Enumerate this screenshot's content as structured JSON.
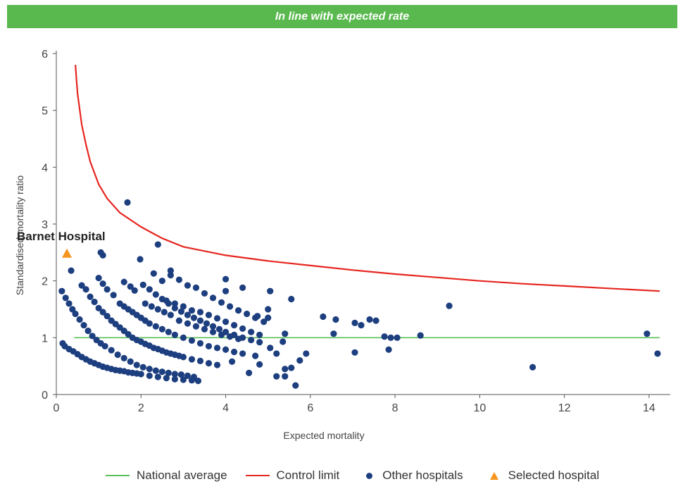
{
  "banner": {
    "text": "In line with expected rate",
    "color": "#59b94e"
  },
  "chart_data": {
    "type": "scatter",
    "xlabel": "Expected mortality",
    "ylabel": "Standardised mortality ratio",
    "xlim": [
      0,
      14.5
    ],
    "ylim": [
      0,
      6
    ],
    "xticks": [
      0,
      2,
      4,
      6,
      8,
      10,
      12,
      14
    ],
    "yticks": [
      0,
      1,
      2,
      3,
      4,
      5,
      6
    ],
    "grid": false,
    "legend_position": "bottom",
    "annotation": {
      "text": "Barnet Hospital",
      "x": 0.25,
      "y": 2.47
    },
    "national_average": {
      "name": "National average",
      "color": "#5cc05a",
      "x": [
        0.42,
        14.25
      ],
      "y": [
        1,
        1
      ]
    },
    "control_limit": {
      "name": "Control limit",
      "color": "#e62620",
      "x": [
        0.45,
        0.5,
        0.6,
        0.7,
        0.8,
        1.0,
        1.2,
        1.5,
        2,
        2.5,
        3,
        4,
        5,
        6,
        7,
        8,
        9,
        10,
        11,
        12,
        13,
        14.25
      ],
      "y": [
        5.8,
        5.3,
        4.75,
        4.4,
        4.1,
        3.7,
        3.45,
        3.2,
        2.95,
        2.75,
        2.6,
        2.45,
        2.35,
        2.27,
        2.19,
        2.12,
        2.06,
        2.0,
        1.95,
        1.91,
        1.87,
        1.82
      ]
    },
    "other_hospitals": {
      "name": "Other hospitals",
      "color": "#1d3f7f",
      "points": [
        [
          0.13,
          1.82
        ],
        [
          0.22,
          1.7
        ],
        [
          0.3,
          1.6
        ],
        [
          0.38,
          1.5
        ],
        [
          0.45,
          1.42
        ],
        [
          0.55,
          1.32
        ],
        [
          0.65,
          1.22
        ],
        [
          0.75,
          1.12
        ],
        [
          0.85,
          1.03
        ],
        [
          0.95,
          0.96
        ],
        [
          1.05,
          0.9
        ],
        [
          1.15,
          0.85
        ],
        [
          1.3,
          0.78
        ],
        [
          1.45,
          0.7
        ],
        [
          1.6,
          0.64
        ],
        [
          1.75,
          0.58
        ],
        [
          1.9,
          0.52
        ],
        [
          2.05,
          0.48
        ],
        [
          2.2,
          0.45
        ],
        [
          2.35,
          0.42
        ],
        [
          2.5,
          0.4
        ],
        [
          2.65,
          0.38
        ],
        [
          2.8,
          0.36
        ],
        [
          2.95,
          0.35
        ],
        [
          3.1,
          0.33
        ],
        [
          3.25,
          0.31
        ],
        [
          0.15,
          0.9
        ],
        [
          0.2,
          0.85
        ],
        [
          0.3,
          0.8
        ],
        [
          0.4,
          0.76
        ],
        [
          0.5,
          0.71
        ],
        [
          0.6,
          0.66
        ],
        [
          0.7,
          0.62
        ],
        [
          0.8,
          0.58
        ],
        [
          0.9,
          0.55
        ],
        [
          1.0,
          0.52
        ],
        [
          1.1,
          0.49
        ],
        [
          1.2,
          0.47
        ],
        [
          1.3,
          0.45
        ],
        [
          1.4,
          0.43
        ],
        [
          1.5,
          0.42
        ],
        [
          1.6,
          0.41
        ],
        [
          1.7,
          0.39
        ],
        [
          1.8,
          0.38
        ],
        [
          1.9,
          0.37
        ],
        [
          2.0,
          0.36
        ],
        [
          2.2,
          0.33
        ],
        [
          2.4,
          0.31
        ],
        [
          2.6,
          0.29
        ],
        [
          2.8,
          0.27
        ],
        [
          3.0,
          0.26
        ],
        [
          3.2,
          0.25
        ],
        [
          3.35,
          0.24
        ],
        [
          0.35,
          2.18
        ],
        [
          0.6,
          1.92
        ],
        [
          0.7,
          1.85
        ],
        [
          0.8,
          1.72
        ],
        [
          0.9,
          1.63
        ],
        [
          1.0,
          1.52
        ],
        [
          1.1,
          1.45
        ],
        [
          1.2,
          1.38
        ],
        [
          1.3,
          1.3
        ],
        [
          1.4,
          1.24
        ],
        [
          1.5,
          1.18
        ],
        [
          1.6,
          1.12
        ],
        [
          1.7,
          1.06
        ],
        [
          1.8,
          1.0
        ],
        [
          1.9,
          0.96
        ],
        [
          2.0,
          0.93
        ],
        [
          2.1,
          0.89
        ],
        [
          2.2,
          0.86
        ],
        [
          2.3,
          0.82
        ],
        [
          2.4,
          0.8
        ],
        [
          2.5,
          0.77
        ],
        [
          2.6,
          0.74
        ],
        [
          2.7,
          0.72
        ],
        [
          2.8,
          0.7
        ],
        [
          2.9,
          0.68
        ],
        [
          3.0,
          0.66
        ],
        [
          3.2,
          0.62
        ],
        [
          3.4,
          0.59
        ],
        [
          3.6,
          0.55
        ],
        [
          3.8,
          0.52
        ],
        [
          1.0,
          2.05
        ],
        [
          1.1,
          1.95
        ],
        [
          1.2,
          1.85
        ],
        [
          1.35,
          1.75
        ],
        [
          1.5,
          1.6
        ],
        [
          1.6,
          1.55
        ],
        [
          1.7,
          1.5
        ],
        [
          1.8,
          1.45
        ],
        [
          1.9,
          1.4
        ],
        [
          2.0,
          1.35
        ],
        [
          2.1,
          1.3
        ],
        [
          2.2,
          1.25
        ],
        [
          2.35,
          1.2
        ],
        [
          2.5,
          1.15
        ],
        [
          2.65,
          1.1
        ],
        [
          2.8,
          1.05
        ],
        [
          3.0,
          1.0
        ],
        [
          3.2,
          0.95
        ],
        [
          3.4,
          0.9
        ],
        [
          3.6,
          0.85
        ],
        [
          3.8,
          0.82
        ],
        [
          4.0,
          0.79
        ],
        [
          4.2,
          0.75
        ],
        [
          4.4,
          0.72
        ],
        [
          1.6,
          1.98
        ],
        [
          1.75,
          1.9
        ],
        [
          1.85,
          1.83
        ],
        [
          2.05,
          1.93
        ],
        [
          2.2,
          1.85
        ],
        [
          2.35,
          1.76
        ],
        [
          2.5,
          1.68
        ],
        [
          2.65,
          1.6
        ],
        [
          2.8,
          1.52
        ],
        [
          2.95,
          1.46
        ],
        [
          3.1,
          1.4
        ],
        [
          3.25,
          1.35
        ],
        [
          3.4,
          1.3
        ],
        [
          3.55,
          1.25
        ],
        [
          3.7,
          1.2
        ],
        [
          3.85,
          1.15
        ],
        [
          4.0,
          1.1
        ],
        [
          4.2,
          1.05
        ],
        [
          4.4,
          1.0
        ],
        [
          4.6,
          0.96
        ],
        [
          4.8,
          0.92
        ],
        [
          2.1,
          1.6
        ],
        [
          2.25,
          1.55
        ],
        [
          2.4,
          1.5
        ],
        [
          2.55,
          1.45
        ],
        [
          2.7,
          1.4
        ],
        [
          2.9,
          1.3
        ],
        [
          3.1,
          1.25
        ],
        [
          3.3,
          1.2
        ],
        [
          3.5,
          1.15
        ],
        [
          3.7,
          1.1
        ],
        [
          3.9,
          1.05
        ],
        [
          4.1,
          1.02
        ],
        [
          4.3,
          0.98
        ],
        [
          2.3,
          2.13
        ],
        [
          2.5,
          2.0
        ],
        [
          2.7,
          2.1
        ],
        [
          2.9,
          2.02
        ],
        [
          3.1,
          1.92
        ],
        [
          3.3,
          1.88
        ],
        [
          3.5,
          1.78
        ],
        [
          3.7,
          1.7
        ],
        [
          3.9,
          1.62
        ],
        [
          4.1,
          1.55
        ],
        [
          4.3,
          1.48
        ],
        [
          4.5,
          1.42
        ],
        [
          4.7,
          1.35
        ],
        [
          4.9,
          1.28
        ],
        [
          2.6,
          1.65
        ],
        [
          2.8,
          1.6
        ],
        [
          3.0,
          1.55
        ],
        [
          3.2,
          1.48
        ],
        [
          3.4,
          1.45
        ],
        [
          3.6,
          1.4
        ],
        [
          3.8,
          1.34
        ],
        [
          4.0,
          1.28
        ],
        [
          4.2,
          1.22
        ],
        [
          4.4,
          1.16
        ],
        [
          4.6,
          1.1
        ],
        [
          4.8,
          1.05
        ],
        [
          1.68,
          3.38
        ],
        [
          2.4,
          2.64
        ],
        [
          1.05,
          2.5
        ],
        [
          1.1,
          2.45
        ],
        [
          1.98,
          2.38
        ],
        [
          2.7,
          2.18
        ],
        [
          4.0,
          2.03
        ],
        [
          4.0,
          1.82
        ],
        [
          4.4,
          1.88
        ],
        [
          5.05,
          1.82
        ],
        [
          5.55,
          1.68
        ],
        [
          5.0,
          1.5
        ],
        [
          5.0,
          1.35
        ],
        [
          4.75,
          1.38
        ],
        [
          5.4,
          1.07
        ],
        [
          5.35,
          0.93
        ],
        [
          5.05,
          0.82
        ],
        [
          5.2,
          0.72
        ],
        [
          4.7,
          0.68
        ],
        [
          4.15,
          0.58
        ],
        [
          4.55,
          0.38
        ],
        [
          4.8,
          0.53
        ],
        [
          5.2,
          0.32
        ],
        [
          5.4,
          0.32
        ],
        [
          5.55,
          0.47
        ],
        [
          5.65,
          0.16
        ],
        [
          5.75,
          0.6
        ],
        [
          5.9,
          0.72
        ],
        [
          5.4,
          0.45
        ],
        [
          6.3,
          1.37
        ],
        [
          6.6,
          1.32
        ],
        [
          6.55,
          1.07
        ],
        [
          7.05,
          1.26
        ],
        [
          7.2,
          1.22
        ],
        [
          7.4,
          1.32
        ],
        [
          7.55,
          1.3
        ],
        [
          7.75,
          1.02
        ],
        [
          7.9,
          1.0
        ],
        [
          8.05,
          1.0
        ],
        [
          8.6,
          1.04
        ],
        [
          7.05,
          0.74
        ],
        [
          7.85,
          0.79
        ],
        [
          9.28,
          1.56
        ],
        [
          11.25,
          0.48
        ],
        [
          13.95,
          1.07
        ],
        [
          14.2,
          0.72
        ]
      ]
    },
    "selected_hospital": {
      "name": "Selected hospital",
      "color": "#f7941d",
      "x": 0.25,
      "y": 2.47
    }
  }
}
